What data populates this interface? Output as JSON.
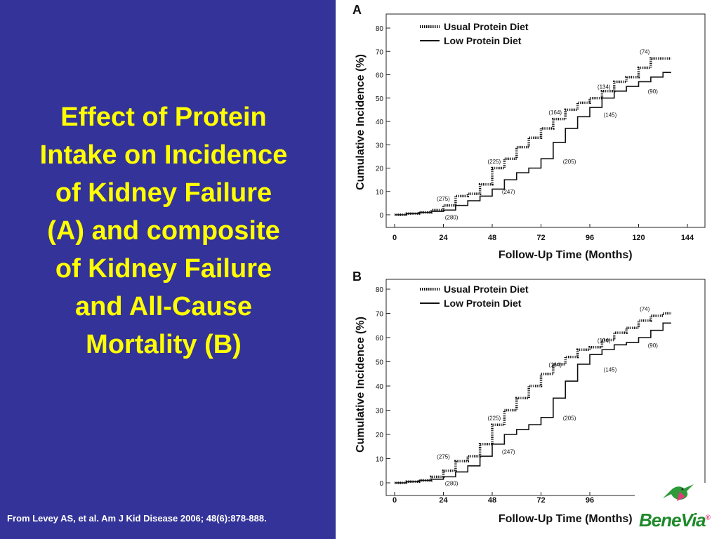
{
  "slide": {
    "title_lines": [
      "Effect of Protein",
      "Intake on Incidence",
      "of Kidney Failure",
      "(A) and composite",
      "of Kidney Failure",
      "and All-Cause",
      "Mortality (B)"
    ],
    "citation": "From Levey AS, et al. Am J Kid Disease 2006;  48(6):878-888.",
    "logo_text": "BeneVia",
    "logo_mark": "®",
    "colors": {
      "panel": "#333399",
      "title": "#ffff00",
      "citation": "#ffffff",
      "logo": "#1f8a2b"
    }
  },
  "chart_data": [
    {
      "panel_label": "A",
      "type": "line",
      "xlabel": "Follow-Up Time (Months)",
      "ylabel": "Cumulative Incidence (%)",
      "xlim": [
        0,
        144
      ],
      "ylim": [
        0,
        80
      ],
      "x_ticks": [
        0,
        24,
        48,
        72,
        96,
        120,
        144
      ],
      "y_ticks": [
        0,
        10,
        20,
        30,
        40,
        50,
        60,
        70,
        80
      ],
      "legend_position": "top-left",
      "series": [
        {
          "name": "Usual Protein Diet",
          "style": "dotted",
          "x": [
            0,
            6,
            12,
            18,
            24,
            30,
            36,
            42,
            48,
            54,
            60,
            66,
            72,
            78,
            84,
            90,
            96,
            102,
            108,
            114,
            120,
            126,
            132,
            136
          ],
          "y": [
            0,
            0.5,
            1,
            2,
            4,
            8,
            9,
            13,
            20,
            24,
            29,
            33,
            37,
            41,
            45,
            48,
            50,
            53,
            57,
            59,
            63,
            67,
            67,
            67
          ]
        },
        {
          "name": "Low Protein Diet",
          "style": "solid",
          "x": [
            0,
            6,
            12,
            18,
            24,
            30,
            36,
            42,
            48,
            54,
            60,
            66,
            72,
            78,
            84,
            90,
            96,
            102,
            108,
            114,
            120,
            126,
            132,
            136
          ],
          "y": [
            0,
            0.5,
            1,
            1.5,
            2,
            4,
            6,
            8,
            11,
            15,
            18,
            20,
            24,
            31,
            37,
            42,
            46,
            50,
            53,
            55,
            57,
            59,
            61,
            61
          ]
        }
      ],
      "annotations": [
        {
          "text": "(275)",
          "x": 24,
          "y": 6
        },
        {
          "text": "(280)",
          "x": 28,
          "y": -2
        },
        {
          "text": "(225)",
          "x": 49,
          "y": 22
        },
        {
          "text": "(247)",
          "x": 56,
          "y": 9
        },
        {
          "text": "(164)",
          "x": 79,
          "y": 43
        },
        {
          "text": "(205)",
          "x": 86,
          "y": 22
        },
        {
          "text": "(134)",
          "x": 103,
          "y": 54
        },
        {
          "text": "(145)",
          "x": 106,
          "y": 42
        },
        {
          "text": "(74)",
          "x": 123,
          "y": 69
        },
        {
          "text": "(90)",
          "x": 127,
          "y": 52
        }
      ]
    },
    {
      "panel_label": "B",
      "type": "line",
      "xlabel": "Follow-Up Time (Months)",
      "ylabel": "Cumulative Incidence (%)",
      "xlim": [
        0,
        144
      ],
      "ylim": [
        0,
        80
      ],
      "x_ticks": [
        0,
        24,
        48,
        72,
        96
      ],
      "y_ticks": [
        0,
        10,
        20,
        30,
        40,
        50,
        60,
        70,
        80
      ],
      "legend_position": "top-left",
      "series": [
        {
          "name": "Usual Protein Diet",
          "style": "dotted",
          "x": [
            0,
            6,
            12,
            18,
            24,
            30,
            36,
            42,
            48,
            54,
            60,
            66,
            72,
            78,
            84,
            90,
            96,
            102,
            108,
            114,
            120,
            126,
            132,
            136
          ],
          "y": [
            0,
            0.5,
            1,
            2.5,
            5,
            9,
            11,
            16,
            24,
            30,
            35,
            40,
            45,
            49,
            52,
            55,
            56,
            59,
            62,
            64,
            67,
            69,
            70,
            70
          ]
        },
        {
          "name": "Low Protein Diet",
          "style": "solid",
          "x": [
            0,
            6,
            12,
            18,
            24,
            30,
            36,
            42,
            48,
            54,
            60,
            66,
            72,
            78,
            84,
            90,
            96,
            102,
            108,
            114,
            120,
            126,
            132,
            136
          ],
          "y": [
            0,
            0.5,
            1,
            1.5,
            2.5,
            4.5,
            7,
            11,
            16,
            20,
            22,
            24,
            27,
            35,
            42,
            49,
            53,
            55,
            57,
            58,
            60,
            63,
            66,
            66
          ]
        }
      ],
      "annotations": [
        {
          "text": "(275)",
          "x": 24,
          "y": 10
        },
        {
          "text": "(280)",
          "x": 28,
          "y": -1
        },
        {
          "text": "(225)",
          "x": 49,
          "y": 26
        },
        {
          "text": "(247)",
          "x": 56,
          "y": 12
        },
        {
          "text": "(164)",
          "x": 79,
          "y": 48
        },
        {
          "text": "(205)",
          "x": 86,
          "y": 26
        },
        {
          "text": "(134)",
          "x": 103,
          "y": 58
        },
        {
          "text": "(145)",
          "x": 106,
          "y": 46
        },
        {
          "text": "(74)",
          "x": 123,
          "y": 71
        },
        {
          "text": "(90)",
          "x": 127,
          "y": 56
        }
      ]
    }
  ]
}
